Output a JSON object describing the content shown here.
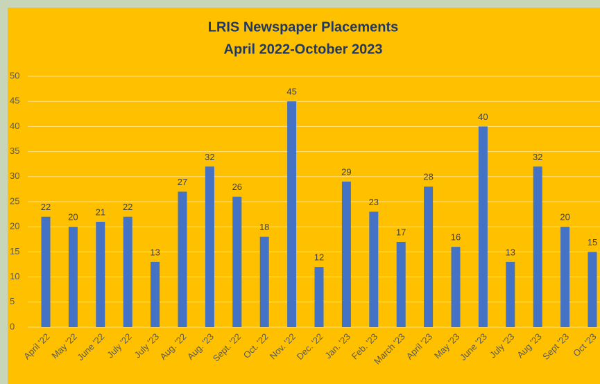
{
  "chart_data": {
    "type": "bar",
    "title": "LRIS Newspaper Placements",
    "subtitle": "April 2022-October 2023",
    "categories": [
      "April '22",
      "May '22",
      "June '22",
      "July '22",
      "July '23",
      "Aug. '22",
      "Aug. '23",
      "Sept. '22",
      "Oct. '22",
      "Nov. '22",
      "Dec. '22",
      "Jan. '23",
      "Feb. '23",
      "March '23",
      "April '23",
      "May '23",
      "June '23",
      "July '23",
      "Aug '23",
      "Sept '23",
      "Oct '23"
    ],
    "values": [
      22,
      20,
      21,
      22,
      13,
      27,
      32,
      26,
      18,
      45,
      12,
      29,
      23,
      17,
      28,
      16,
      40,
      13,
      32,
      20,
      15
    ],
    "color": "#4472c4",
    "ylim": [
      0,
      50
    ],
    "yticks": [
      0,
      5,
      10,
      15,
      20,
      25,
      30,
      35,
      40,
      45,
      50
    ],
    "grid": true
  }
}
